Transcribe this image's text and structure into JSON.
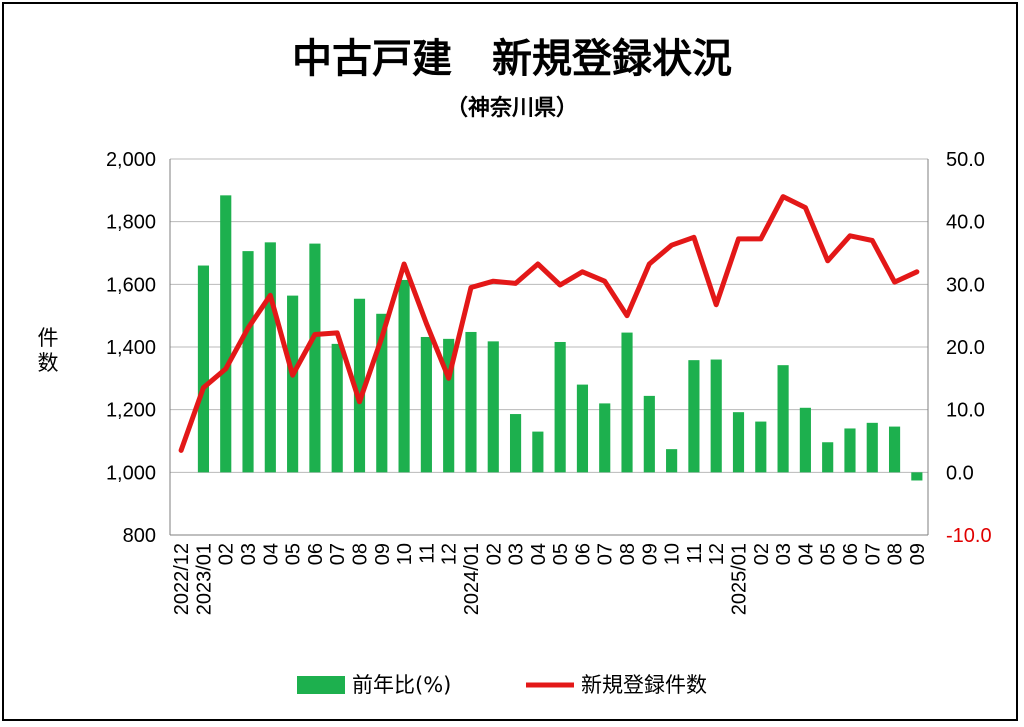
{
  "chart_data": {
    "type": "bar",
    "title": "中古戸建　新規登録状況",
    "subtitle": "（神奈川県）",
    "ylabel": "件数",
    "ylim": [
      800,
      2000
    ],
    "y2lim": [
      -10,
      50
    ],
    "y_ticks": [
      "2,000",
      "1,800",
      "1,600",
      "1,400",
      "1,200",
      "1,000",
      "800"
    ],
    "y2_ticks": [
      "50.0",
      "40.0",
      "30.0",
      "20.0",
      "10.0",
      "0.0",
      "-10.0"
    ],
    "y2_negative_color": "#e00000",
    "categories": [
      "2022/12",
      "2023/01",
      "02",
      "03",
      "04",
      "05",
      "06",
      "07",
      "08",
      "09",
      "10",
      "11",
      "12",
      "2024/01",
      "02",
      "03",
      "04",
      "05",
      "06",
      "07",
      "08",
      "09",
      "10",
      "11",
      "12",
      "2025/01",
      "02",
      "03",
      "04",
      "05",
      "06",
      "07",
      "08",
      "09"
    ],
    "series": [
      {
        "name": "前年比(%)",
        "type": "bar",
        "axis": "right",
        "color": "#1db04e",
        "values": [
          null,
          33.0,
          44.2,
          35.3,
          36.7,
          28.2,
          36.5,
          20.5,
          27.7,
          25.3,
          30.7,
          21.6,
          21.3,
          22.4,
          20.9,
          9.3,
          6.5,
          20.8,
          14.0,
          11.0,
          22.3,
          12.2,
          3.7,
          17.9,
          18.0,
          9.6,
          8.1,
          17.1,
          10.3,
          4.8,
          7.0,
          7.9,
          7.3,
          -1.3
        ]
      },
      {
        "name": "新規登録件数",
        "type": "line",
        "axis": "left",
        "color": "#e31818",
        "values": [
          1070,
          1270,
          1330,
          1460,
          1565,
          1310,
          1440,
          1445,
          1225,
          1430,
          1665,
          1475,
          1300,
          1590,
          1610,
          1603,
          1665,
          1598,
          1640,
          1610,
          1500,
          1665,
          1725,
          1750,
          1535,
          1745,
          1745,
          1880,
          1845,
          1675,
          1755,
          1740,
          1607,
          1640
        ]
      }
    ],
    "legend_position": "bottom"
  }
}
